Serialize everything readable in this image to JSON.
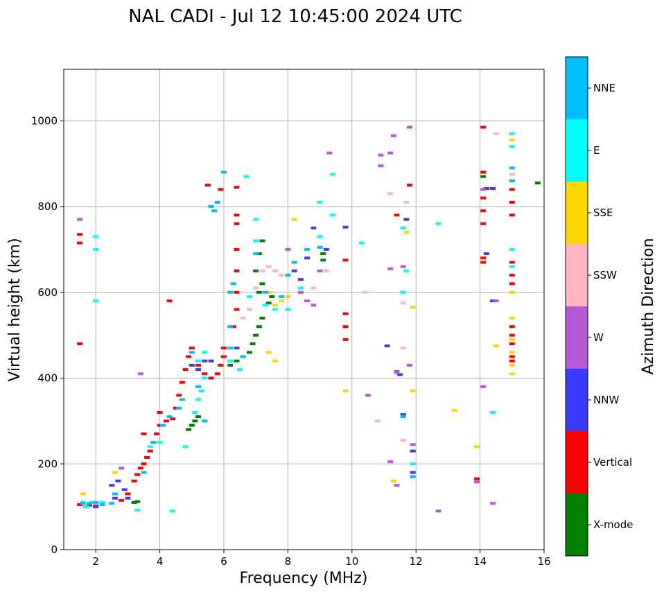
{
  "chart_data": {
    "type": "scatter",
    "title": "NAL CADI - Jul 12 10:45:00 2024 UTC",
    "xlabel": "Frequency (MHz)",
    "ylabel": "Virtual height (km)",
    "xlim": [
      1,
      16
    ],
    "ylim": [
      0,
      1120
    ],
    "xticks": [
      2,
      4,
      6,
      8,
      10,
      12,
      14,
      16
    ],
    "yticks": [
      0,
      200,
      400,
      600,
      800,
      1000
    ],
    "grid": true,
    "colorbar": {
      "label": "Azimuth Direction",
      "categories": [
        {
          "name": "X-mode",
          "color": "#008000"
        },
        {
          "name": "Vertical",
          "color": "#ff0000"
        },
        {
          "name": "NNW",
          "color": "#3a3aff"
        },
        {
          "name": "W",
          "color": "#b45ad6"
        },
        {
          "name": "SSW",
          "color": "#ffb6c1"
        },
        {
          "name": "SSE",
          "color": "#ffd700"
        },
        {
          "name": "E",
          "color": "#00ffff"
        },
        {
          "name": "NNE",
          "color": "#00bfff"
        }
      ]
    },
    "series": [
      {
        "name": "X-mode",
        "points": [
          [
            3.2,
            110
          ],
          [
            3.3,
            112
          ],
          [
            4.9,
            280
          ],
          [
            5.0,
            290
          ],
          [
            5.1,
            300
          ],
          [
            5.2,
            310
          ],
          [
            6.2,
            430
          ],
          [
            6.4,
            440
          ],
          [
            6.6,
            450
          ],
          [
            6.8,
            460
          ],
          [
            6.9,
            480
          ],
          [
            7.0,
            500
          ],
          [
            7.1,
            520
          ],
          [
            7.2,
            540
          ],
          [
            7.1,
            600
          ],
          [
            7.2,
            620
          ],
          [
            7.0,
            650
          ],
          [
            7.1,
            690
          ],
          [
            7.2,
            720
          ],
          [
            7.4,
            575
          ],
          [
            7.5,
            590
          ],
          [
            9.1,
            690
          ],
          [
            9.1,
            675
          ],
          [
            15.8,
            855
          ],
          [
            14.1,
            870
          ]
        ]
      },
      {
        "name": "Vertical",
        "points": [
          [
            1.5,
            105
          ],
          [
            1.7,
            100
          ],
          [
            1.8,
            104
          ],
          [
            2.0,
            102
          ],
          [
            2.8,
            115
          ],
          [
            3.0,
            130
          ],
          [
            3.2,
            160
          ],
          [
            3.3,
            175
          ],
          [
            3.4,
            190
          ],
          [
            3.5,
            200
          ],
          [
            3.6,
            215
          ],
          [
            3.7,
            230
          ],
          [
            3.8,
            250
          ],
          [
            3.9,
            270
          ],
          [
            4.0,
            290
          ],
          [
            4.0,
            320
          ],
          [
            4.2,
            300
          ],
          [
            4.4,
            305
          ],
          [
            4.5,
            330
          ],
          [
            4.6,
            360
          ],
          [
            4.7,
            390
          ],
          [
            4.8,
            420
          ],
          [
            4.9,
            450
          ],
          [
            5.0,
            470
          ],
          [
            5.2,
            430
          ],
          [
            5.4,
            410
          ],
          [
            5.6,
            400
          ],
          [
            5.8,
            410
          ],
          [
            5.9,
            430
          ],
          [
            6.0,
            450
          ],
          [
            6.0,
            470
          ],
          [
            6.3,
            520
          ],
          [
            6.4,
            560
          ],
          [
            6.4,
            600
          ],
          [
            6.4,
            650
          ],
          [
            6.4,
            700
          ],
          [
            6.4,
            760
          ],
          [
            6.4,
            780
          ],
          [
            5.5,
            850
          ],
          [
            5.9,
            840
          ],
          [
            6.4,
            845
          ],
          [
            3.5,
            270
          ],
          [
            4.3,
            580
          ],
          [
            1.5,
            480
          ],
          [
            1.5,
            715
          ],
          [
            1.5,
            735
          ],
          [
            9.8,
            675
          ],
          [
            9.8,
            550
          ],
          [
            9.8,
            520
          ],
          [
            9.8,
            490
          ],
          [
            11.8,
            850
          ],
          [
            11.4,
            780
          ],
          [
            13.9,
            240
          ],
          [
            13.9,
            165
          ],
          [
            14.1,
            985
          ],
          [
            14.1,
            880
          ],
          [
            14.1,
            820
          ],
          [
            14.1,
            790
          ],
          [
            14.1,
            760
          ],
          [
            14.1,
            680
          ],
          [
            14.1,
            670
          ],
          [
            15.0,
            860
          ],
          [
            15.0,
            840
          ],
          [
            15.0,
            810
          ],
          [
            15.0,
            780
          ],
          [
            15.0,
            670
          ],
          [
            15.0,
            640
          ],
          [
            15.0,
            620
          ],
          [
            15.0,
            520
          ],
          [
            15.0,
            500
          ],
          [
            15.0,
            480
          ],
          [
            15.0,
            450
          ],
          [
            15.0,
            440
          ]
        ]
      },
      {
        "name": "NNW",
        "points": [
          [
            2.0,
            100
          ],
          [
            2.5,
            150
          ],
          [
            2.7,
            160
          ],
          [
            2.6,
            120
          ],
          [
            2.9,
            140
          ],
          [
            3.0,
            120
          ],
          [
            5.0,
            430
          ],
          [
            5.2,
            420
          ],
          [
            5.4,
            440
          ],
          [
            5.6,
            440
          ],
          [
            6.4,
            470
          ],
          [
            8.2,
            650
          ],
          [
            8.4,
            630
          ],
          [
            8.6,
            680
          ],
          [
            8.8,
            750
          ],
          [
            9.2,
            700
          ],
          [
            9.8,
            752
          ],
          [
            11.1,
            475
          ],
          [
            11.4,
            415
          ],
          [
            11.5,
            408
          ],
          [
            11.6,
            315
          ],
          [
            11.7,
            770
          ],
          [
            11.9,
            230
          ],
          [
            11.9,
            180
          ],
          [
            14.2,
            842
          ],
          [
            14.4,
            842
          ],
          [
            14.4,
            580
          ],
          [
            14.2,
            690
          ]
        ]
      },
      {
        "name": "W",
        "points": [
          [
            1.5,
            770
          ],
          [
            2.8,
            190
          ],
          [
            3.4,
            410
          ],
          [
            8.0,
            700
          ],
          [
            8.4,
            600
          ],
          [
            8.6,
            580
          ],
          [
            8.8,
            570
          ],
          [
            9.0,
            650
          ],
          [
            9.3,
            925
          ],
          [
            10.5,
            360
          ],
          [
            10.9,
            920
          ],
          [
            10.9,
            895
          ],
          [
            11.2,
            925
          ],
          [
            11.2,
            655
          ],
          [
            11.3,
            965
          ],
          [
            11.4,
            413
          ],
          [
            11.4,
            150
          ],
          [
            11.2,
            205
          ],
          [
            11.6,
            660
          ],
          [
            11.8,
            430
          ],
          [
            11.8,
            985
          ],
          [
            11.9,
            245
          ],
          [
            11.9,
            170
          ],
          [
            12.7,
            90
          ],
          [
            13.9,
            158
          ],
          [
            14.1,
            840
          ],
          [
            14.1,
            380
          ],
          [
            14.4,
            108
          ],
          [
            14.5,
            580
          ]
        ]
      },
      {
        "name": "SSW",
        "points": [
          [
            6.6,
            540
          ],
          [
            6.8,
            560
          ],
          [
            7.0,
            610
          ],
          [
            7.2,
            650
          ],
          [
            7.4,
            660
          ],
          [
            7.6,
            650
          ],
          [
            7.8,
            640
          ],
          [
            8.0,
            560
          ],
          [
            8.8,
            610
          ],
          [
            9.2,
            650
          ],
          [
            10.4,
            600
          ],
          [
            10.8,
            300
          ],
          [
            11.6,
            470
          ],
          [
            11.6,
            255
          ],
          [
            11.6,
            575
          ],
          [
            11.7,
            810
          ],
          [
            11.2,
            830
          ],
          [
            14.5,
            970
          ],
          [
            15.0,
            600
          ],
          [
            15.0,
            660
          ],
          [
            15.0,
            875
          ]
        ]
      },
      {
        "name": "SSE",
        "points": [
          [
            1.6,
            130
          ],
          [
            2.6,
            180
          ],
          [
            7.4,
            600
          ],
          [
            7.6,
            570
          ],
          [
            7.8,
            580
          ],
          [
            8.0,
            590
          ],
          [
            8.2,
            770
          ],
          [
            7.6,
            440
          ],
          [
            7.4,
            460
          ],
          [
            9.8,
            370
          ],
          [
            11.7,
            740
          ],
          [
            11.9,
            370
          ],
          [
            11.9,
            565
          ],
          [
            13.2,
            325
          ],
          [
            13.9,
            240
          ],
          [
            14.5,
            475
          ],
          [
            15.0,
            410
          ],
          [
            15.0,
            430
          ],
          [
            15.0,
            460
          ],
          [
            15.0,
            490
          ],
          [
            15.0,
            540
          ],
          [
            15.0,
            600
          ],
          [
            15.0,
            955
          ],
          [
            11.3,
            160
          ]
        ]
      },
      {
        "name": "E",
        "points": [
          [
            1.6,
            110
          ],
          [
            1.7,
            100
          ],
          [
            1.9,
            110
          ],
          [
            2.0,
            580
          ],
          [
            2.0,
            730
          ],
          [
            2.0,
            700
          ],
          [
            2.2,
            110
          ],
          [
            3.3,
            92
          ],
          [
            3.7,
            240
          ],
          [
            4.0,
            250
          ],
          [
            4.4,
            90
          ],
          [
            4.8,
            240
          ],
          [
            5.1,
            320
          ],
          [
            5.2,
            350
          ],
          [
            5.3,
            370
          ],
          [
            5.4,
            400
          ],
          [
            5.2,
            440
          ],
          [
            5.4,
            460
          ],
          [
            6.2,
            440
          ],
          [
            6.5,
            420
          ],
          [
            6.7,
            870
          ],
          [
            6.8,
            590
          ],
          [
            7.0,
            770
          ],
          [
            7.0,
            720
          ],
          [
            7.3,
            570
          ],
          [
            7.6,
            560
          ],
          [
            8.0,
            560
          ],
          [
            8.4,
            610
          ],
          [
            9.0,
            730
          ],
          [
            9.0,
            810
          ],
          [
            9.4,
            875
          ],
          [
            9.4,
            780
          ],
          [
            10.3,
            715
          ],
          [
            11.7,
            650
          ],
          [
            11.6,
            600
          ],
          [
            11.9,
            200
          ],
          [
            12.7,
            760
          ],
          [
            14.4,
            320
          ],
          [
            15.0,
            970
          ],
          [
            15.0,
            940
          ],
          [
            15.0,
            700
          ],
          [
            15.0,
            660
          ],
          [
            11.6,
            750
          ]
        ]
      },
      {
        "name": "NNE",
        "points": [
          [
            1.6,
            108
          ],
          [
            1.8,
            108
          ],
          [
            2.0,
            110
          ],
          [
            2.2,
            105
          ],
          [
            2.5,
            108
          ],
          [
            2.6,
            130
          ],
          [
            3.5,
            180
          ],
          [
            3.8,
            250
          ],
          [
            4.1,
            290
          ],
          [
            4.3,
            310
          ],
          [
            4.6,
            330
          ],
          [
            4.7,
            350
          ],
          [
            5.0,
            460
          ],
          [
            5.2,
            380
          ],
          [
            5.4,
            300
          ],
          [
            5.6,
            800
          ],
          [
            5.7,
            790
          ],
          [
            5.8,
            810
          ],
          [
            6.0,
            880
          ],
          [
            6.2,
            470
          ],
          [
            6.2,
            520
          ],
          [
            6.2,
            600
          ],
          [
            6.3,
            620
          ],
          [
            6.6,
            450
          ],
          [
            7.0,
            690
          ],
          [
            7.3,
            600
          ],
          [
            7.8,
            590
          ],
          [
            8.0,
            640
          ],
          [
            8.2,
            670
          ],
          [
            8.6,
            700
          ],
          [
            9.0,
            705
          ],
          [
            11.6,
            310
          ],
          [
            11.9,
            170
          ],
          [
            15.0,
            890
          ],
          [
            15.0,
            860
          ]
        ]
      }
    ]
  }
}
